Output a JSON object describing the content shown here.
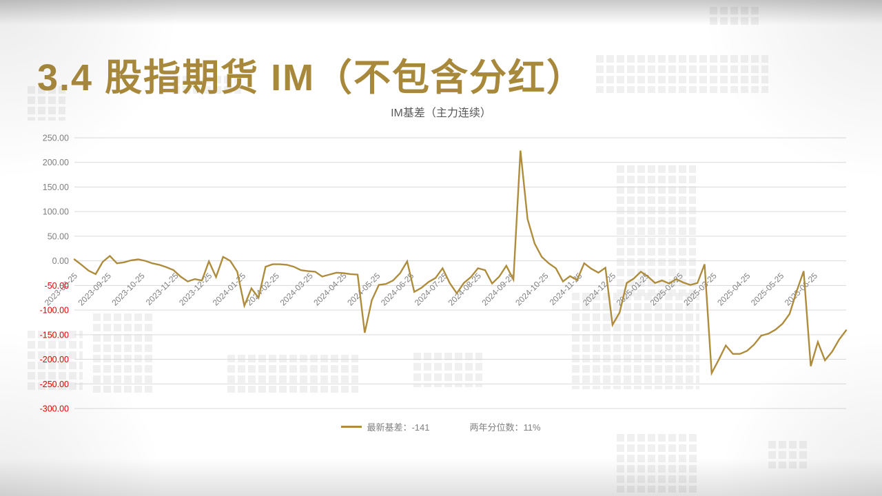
{
  "slide": {
    "title": "3.4 股指期货 IM（不包含分红）",
    "title_color": "#A8893C"
  },
  "legend": {
    "items": [
      {
        "swatch": "line",
        "label": "最新基差：-141"
      },
      {
        "swatch": "none",
        "label": "两年分位数：11%"
      }
    ],
    "text_color": "#7F7F7F"
  },
  "chart_data": {
    "type": "line",
    "title": "IM基差（主力连续）",
    "xlabel": "",
    "ylabel": "",
    "ylim": [
      -300,
      250
    ],
    "grid": "horizontal",
    "legend_position": "bottom",
    "latest_basis": -141,
    "two_year_percentile": "11%",
    "style": {
      "series_color": "#AE8C3C",
      "grid_color": "#D9D9D9",
      "positive_tick_color": "#7F7F7F",
      "negative_tick_color": "#E00000",
      "x_tick_color": "#7F7F7F",
      "title_color": "#595959"
    },
    "y_ticks": [
      {
        "value": 250,
        "label": "250.00"
      },
      {
        "value": 200,
        "label": "200.00"
      },
      {
        "value": 150,
        "label": "150.00"
      },
      {
        "value": 100,
        "label": "100.00"
      },
      {
        "value": 50,
        "label": "50.00"
      },
      {
        "value": 0,
        "label": "0.00"
      },
      {
        "value": -50,
        "label": "-50.00"
      },
      {
        "value": -100,
        "label": "-100.00"
      },
      {
        "value": -150,
        "label": "-150.00"
      },
      {
        "value": -200,
        "label": "-200.00"
      },
      {
        "value": -250,
        "label": "-250.00"
      },
      {
        "value": -300,
        "label": "-300.00"
      }
    ],
    "x_tick_labels": [
      "2023-08-25",
      "2023-09-25",
      "2023-10-25",
      "2023-11-25",
      "2023-12-25",
      "2024-01-25",
      "2024-02-25",
      "2024-03-25",
      "2024-04-25",
      "2024-05-25",
      "2024-06-25",
      "2024-07-25",
      "2024-08-25",
      "2024-09-25",
      "2024-10-25",
      "2024-11-25",
      "2024-12-25",
      "2025-01-25",
      "2025-02-25",
      "2025-03-25",
      "2025-04-25",
      "2025-05-25",
      "2025-06-25"
    ],
    "series": [
      {
        "name": "最新基差",
        "color": "#AE8C3C",
        "values": [
          3,
          -8,
          -20,
          -27,
          -2,
          10,
          -5,
          -3,
          1,
          3,
          0,
          -5,
          -8,
          -13,
          -19,
          -32,
          -42,
          -37,
          -40,
          -1,
          -33,
          8,
          0,
          -22,
          -91,
          -56,
          -75,
          -12,
          -7,
          -7,
          -8,
          -12,
          -19,
          -21,
          -22,
          -32,
          -28,
          -24,
          -25,
          -27,
          -28,
          -146,
          -80,
          -49,
          -47,
          -40,
          -25,
          -1,
          -63,
          -55,
          -43,
          -35,
          -15,
          -45,
          -66,
          -45,
          -33,
          -15,
          -19,
          -46,
          -32,
          -10,
          -38,
          224,
          85,
          35,
          8,
          -5,
          -15,
          -42,
          -31,
          -39,
          -5,
          -16,
          -24,
          -14,
          -130,
          -105,
          -45,
          -36,
          -22,
          -32,
          -45,
          -40,
          -46,
          -37,
          -44,
          -49,
          -45,
          -7,
          -228,
          -201,
          -172,
          -189,
          -189,
          -183,
          -170,
          -152,
          -148,
          -140,
          -128,
          -108,
          -62,
          -21,
          -214,
          -165,
          -202,
          -185,
          -160,
          -141
        ]
      }
    ]
  }
}
